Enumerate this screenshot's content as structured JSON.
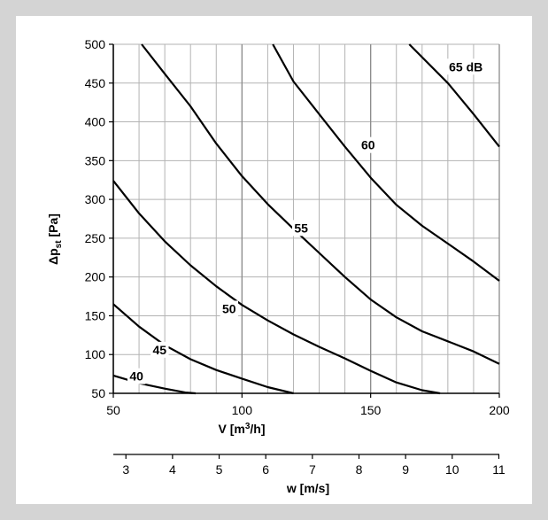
{
  "chart_data": {
    "type": "line",
    "x_axis": {
      "label_main": "V [m",
      "label_sup": "3",
      "label_end": "/h]",
      "range": [
        50,
        200
      ],
      "ticks": [
        50,
        100,
        150,
        200
      ],
      "minor_step": 10
    },
    "secondary_x_axis": {
      "label": "w [m/s]",
      "ticks": [
        3,
        4,
        5,
        6,
        7,
        8,
        9,
        10,
        11
      ],
      "value_range": [
        2.73,
        11.01
      ]
    },
    "y_axis": {
      "label_main": "Δp",
      "label_sub": "st",
      "label_end": " [Pa]",
      "range": [
        50,
        500
      ],
      "ticks": [
        50,
        100,
        150,
        200,
        250,
        300,
        350,
        400,
        450,
        500
      ]
    },
    "grid": true,
    "series": [
      {
        "name": "40",
        "label": "40",
        "label_at": [
          59,
          71
        ],
        "points": [
          [
            50,
            73
          ],
          [
            60,
            63
          ],
          [
            70,
            56
          ],
          [
            78,
            51
          ],
          [
            82,
            50
          ]
        ]
      },
      {
        "name": "45",
        "label": "45",
        "label_at": [
          68,
          105
        ],
        "points": [
          [
            50,
            165
          ],
          [
            60,
            136
          ],
          [
            70,
            112
          ],
          [
            80,
            94
          ],
          [
            90,
            80
          ],
          [
            100,
            69
          ],
          [
            110,
            58
          ],
          [
            120,
            50
          ]
        ]
      },
      {
        "name": "50",
        "label": "50",
        "label_at": [
          95,
          158
        ],
        "points": [
          [
            50,
            324
          ],
          [
            60,
            282
          ],
          [
            70,
            246
          ],
          [
            80,
            215
          ],
          [
            90,
            188
          ],
          [
            100,
            164
          ],
          [
            110,
            144
          ],
          [
            120,
            126
          ],
          [
            130,
            110
          ],
          [
            140,
            95
          ],
          [
            150,
            79
          ],
          [
            160,
            64
          ],
          [
            170,
            54
          ],
          [
            177,
            50
          ]
        ]
      },
      {
        "name": "55",
        "label": "55",
        "label_at": [
          123,
          262
        ],
        "points": [
          [
            61,
            500
          ],
          [
            70,
            462
          ],
          [
            80,
            420
          ],
          [
            90,
            372
          ],
          [
            100,
            330
          ],
          [
            110,
            294
          ],
          [
            120,
            262
          ],
          [
            130,
            231
          ],
          [
            140,
            200
          ],
          [
            150,
            171
          ],
          [
            160,
            148
          ],
          [
            170,
            130
          ],
          [
            180,
            117
          ],
          [
            190,
            104
          ],
          [
            200,
            88
          ]
        ]
      },
      {
        "name": "60",
        "label": "60",
        "label_at": [
          149,
          369
        ],
        "points": [
          [
            112,
            500
          ],
          [
            120,
            452
          ],
          [
            130,
            410
          ],
          [
            140,
            368
          ],
          [
            150,
            328
          ],
          [
            160,
            293
          ],
          [
            170,
            266
          ],
          [
            180,
            243
          ],
          [
            190,
            220
          ],
          [
            200,
            195
          ]
        ]
      },
      {
        "name": "65 dB",
        "label": "65 dB",
        "label_at": [
          187,
          470
        ],
        "points": [
          [
            165,
            500
          ],
          [
            180,
            450
          ],
          [
            190,
            410
          ],
          [
            200,
            368
          ]
        ]
      }
    ]
  }
}
